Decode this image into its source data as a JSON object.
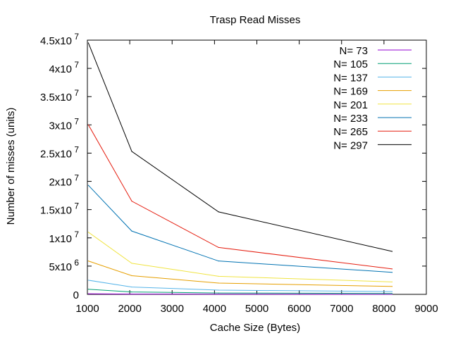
{
  "chart_data": {
    "type": "line",
    "title": "Trasp Read Misses",
    "xlabel": "Cache Size (Bytes)",
    "ylabel": "Number of misses (units)",
    "xlim": [
      1000,
      9000
    ],
    "ylim": [
      0,
      45000000
    ],
    "x_ticks": [
      1000,
      2000,
      3000,
      4000,
      5000,
      6000,
      7000,
      8000,
      9000
    ],
    "x_tick_labels": [
      "1000",
      "2000",
      "3000",
      "4000",
      "5000",
      "6000",
      "7000",
      "8000",
      "9000"
    ],
    "y_ticks": [
      {
        "value": 0,
        "mantissa": "0",
        "exponent": ""
      },
      {
        "value": 5000000,
        "mantissa": "5x10",
        "exponent": "6"
      },
      {
        "value": 10000000,
        "mantissa": "1x10",
        "exponent": "7"
      },
      {
        "value": 15000000,
        "mantissa": "1.5x10",
        "exponent": "7"
      },
      {
        "value": 20000000,
        "mantissa": "2x10",
        "exponent": "7"
      },
      {
        "value": 25000000,
        "mantissa": "2.5x10",
        "exponent": "7"
      },
      {
        "value": 30000000,
        "mantissa": "3x10",
        "exponent": "7"
      },
      {
        "value": 35000000,
        "mantissa": "3.5x10",
        "exponent": "7"
      },
      {
        "value": 40000000,
        "mantissa": "4x10",
        "exponent": "7"
      },
      {
        "value": 45000000,
        "mantissa": "4.5x10",
        "exponent": "7"
      }
    ],
    "grid": false,
    "legend_position": "top-right",
    "x": [
      1024,
      2048,
      4096,
      8192
    ],
    "series": [
      {
        "name": "N= 73",
        "color": "#9400d3",
        "values": [
          100000,
          50000,
          30000,
          20000
        ]
      },
      {
        "name": "N= 105",
        "color": "#009e73",
        "values": [
          900000,
          420000,
          240000,
          150000
        ]
      },
      {
        "name": "N= 137",
        "color": "#56b4e9",
        "values": [
          2500000,
          1300000,
          750000,
          500000
        ]
      },
      {
        "name": "N= 169",
        "color": "#e69f00",
        "values": [
          5900000,
          3300000,
          2000000,
          1400000
        ]
      },
      {
        "name": "N= 201",
        "color": "#f0e442",
        "values": [
          11000000,
          5500000,
          3200000,
          2200000
        ]
      },
      {
        "name": "N= 233",
        "color": "#0072b2",
        "values": [
          19300000,
          11200000,
          5900000,
          3900000
        ]
      },
      {
        "name": "N= 265",
        "color": "#e51e10",
        "values": [
          30000000,
          16500000,
          8300000,
          4500000
        ]
      },
      {
        "name": "N= 297",
        "color": "#000000",
        "values": [
          44500000,
          25300000,
          14600000,
          7600000
        ]
      }
    ]
  }
}
